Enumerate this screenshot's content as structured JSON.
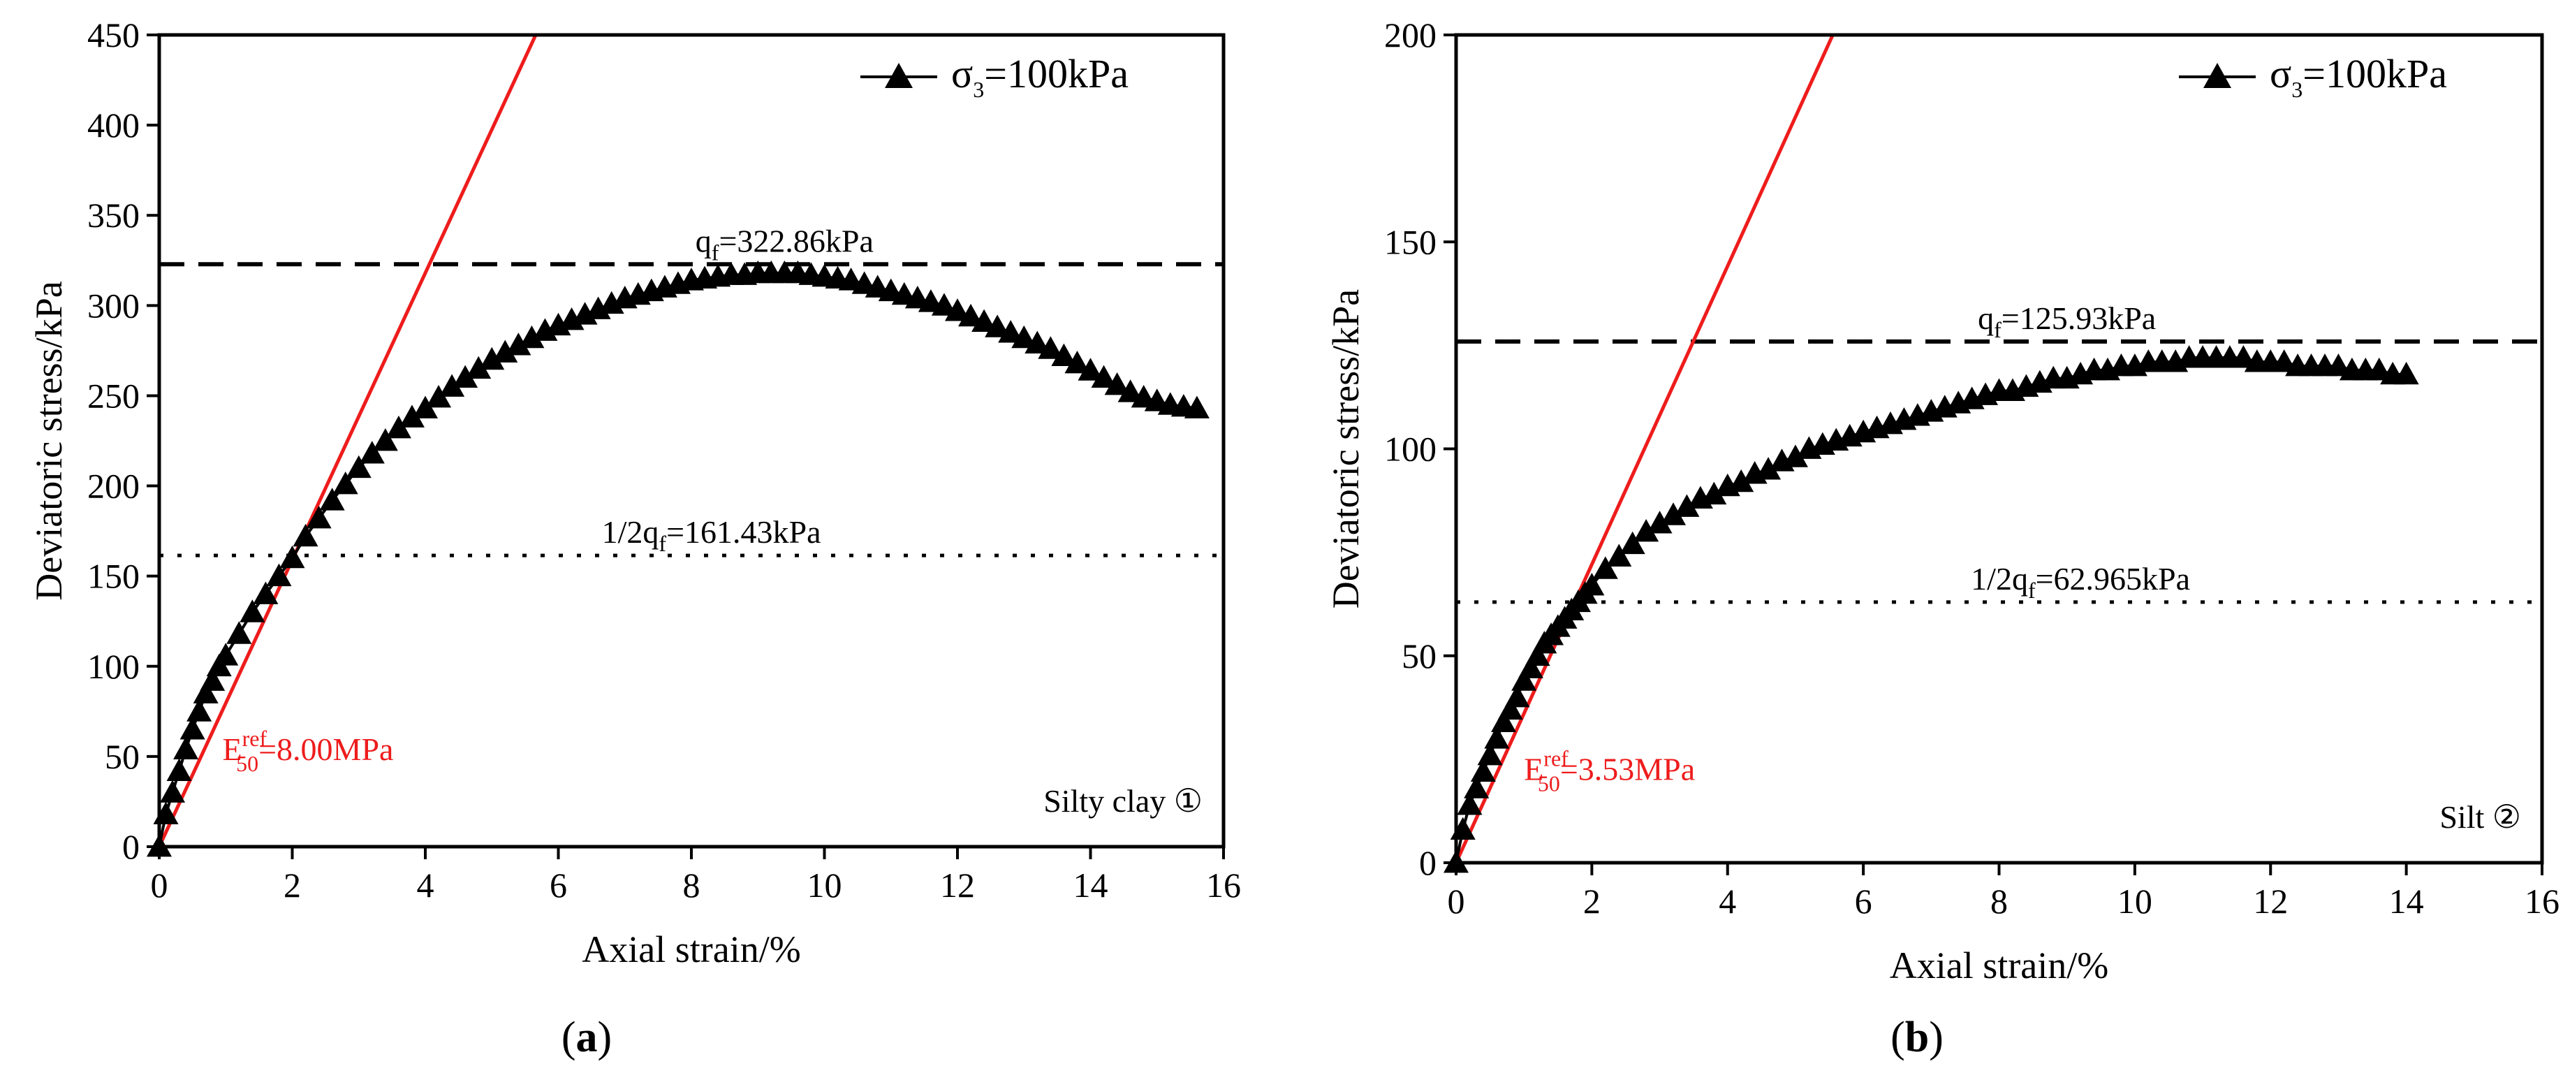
{
  "chart_data": [
    {
      "type": "scatter",
      "panel_label": "(a)",
      "panel_letter": "a",
      "xlabel": "Axial strain/%",
      "ylabel": "Deviatoric stress/kPa",
      "xlim": [
        0,
        16
      ],
      "ylim": [
        0,
        450
      ],
      "xticks": [
        0,
        2,
        4,
        6,
        8,
        10,
        12,
        14,
        16
      ],
      "yticks": [
        0,
        50,
        100,
        150,
        200,
        250,
        300,
        350,
        400,
        450
      ],
      "legend": {
        "base": "σ",
        "sub": "3",
        "rest": "=100kPa",
        "position": "top-right"
      },
      "series": [
        {
          "name": "σ3=100kPa",
          "marker": "triangle",
          "color": "#000000",
          "points": [
            [
              0.0,
              0
            ],
            [
              0.1,
              18
            ],
            [
              0.2,
              30
            ],
            [
              0.3,
              42
            ],
            [
              0.4,
              54
            ],
            [
              0.5,
              65
            ],
            [
              0.6,
              75
            ],
            [
              0.7,
              85
            ],
            [
              0.8,
              92
            ],
            [
              0.9,
              100
            ],
            [
              1.0,
              106
            ],
            [
              1.2,
              118
            ],
            [
              1.4,
              130
            ],
            [
              1.6,
              140
            ],
            [
              1.8,
              150
            ],
            [
              2.0,
              160
            ],
            [
              2.2,
              172
            ],
            [
              2.4,
              182
            ],
            [
              2.6,
              192
            ],
            [
              2.8,
              201
            ],
            [
              3.0,
              210
            ],
            [
              3.2,
              218
            ],
            [
              3.4,
              225
            ],
            [
              3.6,
              232
            ],
            [
              3.8,
              238
            ],
            [
              4.0,
              243
            ],
            [
              4.2,
              249
            ],
            [
              4.4,
              255
            ],
            [
              4.6,
              260
            ],
            [
              4.8,
              265
            ],
            [
              5.0,
              270
            ],
            [
              5.2,
              274
            ],
            [
              5.4,
              278
            ],
            [
              5.6,
              282
            ],
            [
              5.8,
              286
            ],
            [
              6.0,
              289
            ],
            [
              6.2,
              292
            ],
            [
              6.4,
              295
            ],
            [
              6.6,
              298
            ],
            [
              6.8,
              301
            ],
            [
              7.0,
              304
            ],
            [
              7.2,
              306
            ],
            [
              7.4,
              308
            ],
            [
              7.6,
              310
            ],
            [
              7.8,
              312
            ],
            [
              8.0,
              314
            ],
            [
              8.2,
              315
            ],
            [
              8.4,
              316
            ],
            [
              8.6,
              317
            ],
            [
              8.8,
              317
            ],
            [
              9.0,
              318
            ],
            [
              9.2,
              318
            ],
            [
              9.4,
              318
            ],
            [
              9.6,
              318
            ],
            [
              9.8,
              317
            ],
            [
              10.0,
              316
            ],
            [
              10.2,
              315
            ],
            [
              10.4,
              314
            ],
            [
              10.6,
              312
            ],
            [
              10.8,
              310
            ],
            [
              11.0,
              308
            ],
            [
              11.2,
              306
            ],
            [
              11.4,
              304
            ],
            [
              11.6,
              302
            ],
            [
              11.8,
              300
            ],
            [
              12.0,
              297
            ],
            [
              12.2,
              294
            ],
            [
              12.4,
              291
            ],
            [
              12.6,
              288
            ],
            [
              12.8,
              285
            ],
            [
              13.0,
              282
            ],
            [
              13.2,
              279
            ],
            [
              13.4,
              276
            ],
            [
              13.6,
              272
            ],
            [
              13.8,
              268
            ],
            [
              14.0,
              264
            ],
            [
              14.2,
              260
            ],
            [
              14.4,
              256
            ],
            [
              14.6,
              252
            ],
            [
              14.8,
              249
            ],
            [
              15.0,
              247
            ],
            [
              15.2,
              245
            ],
            [
              15.4,
              244
            ],
            [
              15.6,
              243
            ]
          ]
        }
      ],
      "hlines": [
        {
          "y": 322.86,
          "style": "dashed",
          "label_base": "q",
          "label_sub": "f",
          "label_rest": "=322.86kPa",
          "label_x": 9.4,
          "label_prefix": ""
        },
        {
          "y": 161.43,
          "style": "dotted",
          "label_base": "q",
          "label_sub": "f",
          "label_rest": "=161.43kPa",
          "label_x": 8.3,
          "label_prefix": "1/2"
        }
      ],
      "ref_line": {
        "x": [
          0,
          5.66
        ],
        "y": [
          0,
          450
        ],
        "color": "#ee1c1c",
        "label_base": "E",
        "label_sub": "50",
        "label_sup": "ref",
        "label_rest": "=8.00MPa",
        "label_x": 0.95,
        "label_y": 48
      },
      "soil_label": "Silty clay ①"
    },
    {
      "type": "scatter",
      "panel_label": "(b)",
      "panel_letter": "b",
      "xlabel": "Axial strain/%",
      "ylabel": "Deviatoric stress/kPa",
      "xlim": [
        0,
        16
      ],
      "ylim": [
        0,
        200
      ],
      "xticks": [
        0,
        2,
        4,
        6,
        8,
        10,
        12,
        14,
        16
      ],
      "yticks": [
        0,
        50,
        100,
        150,
        200
      ],
      "legend": {
        "base": "σ",
        "sub": "3",
        "rest": "=100kPa",
        "position": "top-right"
      },
      "series": [
        {
          "name": "σ3=100kPa",
          "marker": "triangle",
          "color": "#000000",
          "points": [
            [
              0.0,
              0
            ],
            [
              0.1,
              8
            ],
            [
              0.2,
              14
            ],
            [
              0.3,
              18
            ],
            [
              0.4,
              22
            ],
            [
              0.5,
              26
            ],
            [
              0.6,
              30
            ],
            [
              0.7,
              34
            ],
            [
              0.8,
              37
            ],
            [
              0.9,
              40
            ],
            [
              1.0,
              44
            ],
            [
              1.1,
              47
            ],
            [
              1.2,
              50
            ],
            [
              1.3,
              53
            ],
            [
              1.4,
              55
            ],
            [
              1.5,
              57
            ],
            [
              1.6,
              59
            ],
            [
              1.7,
              61
            ],
            [
              1.8,
              63
            ],
            [
              1.9,
              65
            ],
            [
              2.0,
              67
            ],
            [
              2.2,
              71
            ],
            [
              2.4,
              74
            ],
            [
              2.6,
              77
            ],
            [
              2.8,
              80
            ],
            [
              3.0,
              82
            ],
            [
              3.2,
              84
            ],
            [
              3.4,
              86
            ],
            [
              3.6,
              88
            ],
            [
              3.8,
              89
            ],
            [
              4.0,
              91
            ],
            [
              4.2,
              92
            ],
            [
              4.4,
              94
            ],
            [
              4.6,
              95
            ],
            [
              4.8,
              97
            ],
            [
              5.0,
              98
            ],
            [
              5.2,
              100
            ],
            [
              5.4,
              101
            ],
            [
              5.6,
              102
            ],
            [
              5.8,
              103
            ],
            [
              6.0,
              104
            ],
            [
              6.2,
              105
            ],
            [
              6.4,
              106
            ],
            [
              6.6,
              107
            ],
            [
              6.8,
              108
            ],
            [
              7.0,
              109
            ],
            [
              7.2,
              110
            ],
            [
              7.4,
              111
            ],
            [
              7.6,
              112
            ],
            [
              7.8,
              113
            ],
            [
              8.0,
              114
            ],
            [
              8.2,
              114
            ],
            [
              8.4,
              115
            ],
            [
              8.6,
              116
            ],
            [
              8.8,
              117
            ],
            [
              9.0,
              117
            ],
            [
              9.2,
              118
            ],
            [
              9.4,
              119
            ],
            [
              9.6,
              119
            ],
            [
              9.8,
              120
            ],
            [
              10.0,
              120
            ],
            [
              10.2,
              121
            ],
            [
              10.4,
              121
            ],
            [
              10.6,
              121
            ],
            [
              10.8,
              122
            ],
            [
              11.0,
              122
            ],
            [
              11.2,
              122
            ],
            [
              11.4,
              122
            ],
            [
              11.6,
              122
            ],
            [
              11.8,
              121
            ],
            [
              12.0,
              121
            ],
            [
              12.2,
              121
            ],
            [
              12.4,
              120
            ],
            [
              12.6,
              120
            ],
            [
              12.8,
              120
            ],
            [
              13.0,
              120
            ],
            [
              13.2,
              119
            ],
            [
              13.4,
              119
            ],
            [
              13.6,
              119
            ],
            [
              13.8,
              118
            ],
            [
              14.0,
              118
            ]
          ]
        }
      ],
      "hlines": [
        {
          "y": 125.93,
          "style": "dashed",
          "label_base": "q",
          "label_sub": "f",
          "label_rest": "=125.93kPa",
          "label_x": 9.0,
          "label_prefix": ""
        },
        {
          "y": 62.965,
          "style": "dotted",
          "label_base": "q",
          "label_sub": "f",
          "label_rest": "=62.965kPa",
          "label_x": 9.2,
          "label_prefix": "1/2"
        }
      ],
      "ref_line": {
        "x": [
          0,
          5.55
        ],
        "y": [
          0,
          200
        ],
        "color": "#ee1c1c",
        "label_base": "E",
        "label_sub": "50",
        "label_sup": "ref",
        "label_rest": "=3.53MPa",
        "label_x": 1.0,
        "label_y": 20
      },
      "soil_label": "Silt ②"
    }
  ]
}
